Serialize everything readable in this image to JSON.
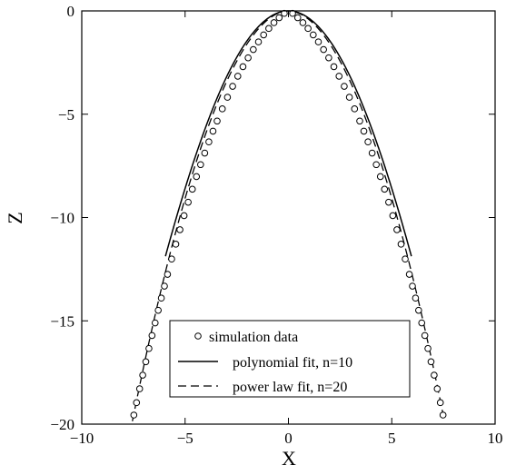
{
  "chart_data": {
    "type": "line",
    "title": "",
    "xlabel": "X",
    "ylabel": "Z",
    "xlim": [
      -10,
      10
    ],
    "ylim": [
      -20,
      0
    ],
    "xticks": [
      -10,
      -5,
      0,
      5,
      10
    ],
    "yticks": [
      -20,
      -15,
      -10,
      -5,
      0
    ],
    "xtick_labels": [
      "−10",
      "−5",
      "0",
      "5",
      "10"
    ],
    "ytick_labels": [
      "−20",
      "−15",
      "−10",
      "−5",
      "0"
    ],
    "grid": false,
    "legend_position": "lower-center",
    "series": [
      {
        "name": "simulation data",
        "style": "open-circle-markers",
        "x": [
          -7.48,
          -7.35,
          -7.2,
          -7.05,
          -6.9,
          -6.75,
          -6.6,
          -6.45,
          -6.3,
          -6.15,
          -6.0,
          -5.85,
          -5.65,
          -5.45,
          -5.25,
          -5.05,
          -4.85,
          -4.65,
          -4.45,
          -4.25,
          -4.05,
          -3.85,
          -3.65,
          -3.45,
          -3.2,
          -2.95,
          -2.7,
          -2.45,
          -2.2,
          -1.95,
          -1.7,
          -1.45,
          -1.2,
          -0.95,
          -0.7,
          -0.45,
          -0.2,
          0.2,
          0.45,
          0.7,
          0.95,
          1.2,
          1.45,
          1.7,
          1.95,
          2.2,
          2.45,
          2.7,
          2.95,
          3.2,
          3.45,
          3.65,
          3.85,
          4.05,
          4.25,
          4.45,
          4.65,
          4.85,
          5.05,
          5.25,
          5.45,
          5.65,
          5.85,
          6.0,
          6.15,
          6.3,
          6.45,
          6.6,
          6.75,
          6.9,
          7.05,
          7.2,
          7.35,
          7.48
        ],
        "y": [
          -19.56,
          -18.96,
          -18.29,
          -17.63,
          -16.98,
          -16.34,
          -15.71,
          -15.1,
          -14.49,
          -13.9,
          -13.32,
          -12.75,
          -12.01,
          -11.29,
          -10.59,
          -9.91,
          -9.26,
          -8.63,
          -8.02,
          -7.44,
          -6.88,
          -6.34,
          -5.82,
          -5.33,
          -4.74,
          -4.18,
          -3.65,
          -3.16,
          -2.7,
          -2.27,
          -1.87,
          -1.5,
          -1.16,
          -0.85,
          -0.57,
          -0.33,
          -0.12,
          -0.12,
          -0.33,
          -0.57,
          -0.85,
          -1.16,
          -1.5,
          -1.87,
          -2.27,
          -2.7,
          -3.16,
          -3.65,
          -4.18,
          -4.74,
          -5.33,
          -5.82,
          -6.34,
          -6.88,
          -7.44,
          -8.02,
          -8.63,
          -9.26,
          -9.91,
          -10.59,
          -11.29,
          -12.01,
          -12.75,
          -13.32,
          -13.9,
          -14.49,
          -15.1,
          -15.71,
          -16.34,
          -16.98,
          -17.63,
          -18.29,
          -18.96,
          -19.56
        ]
      },
      {
        "name": "polynomial fit, n=10",
        "style": "solid",
        "x_range": [
          -5.95,
          5.95
        ]
      },
      {
        "name": "power law fit, n=20",
        "style": "dashed",
        "x_range": [
          -7.55,
          7.55
        ]
      }
    ]
  }
}
